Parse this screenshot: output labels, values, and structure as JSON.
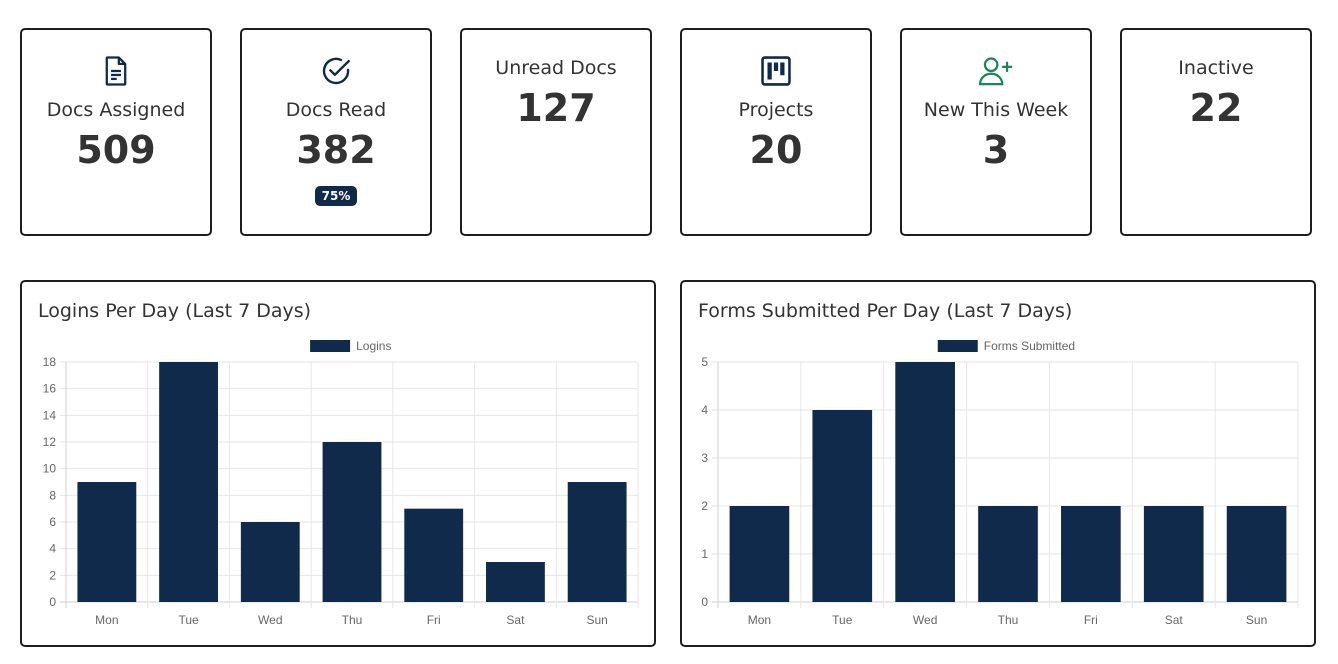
{
  "stats": [
    {
      "label": "Docs Assigned",
      "value": "509",
      "icon": "document-icon"
    },
    {
      "label": "Docs Read",
      "value": "382",
      "icon": "check-circle-icon",
      "badge": "75%"
    },
    {
      "label": "Unread Docs",
      "value": "127"
    },
    {
      "label": "Projects",
      "value": "20",
      "icon": "kanban-board-icon"
    },
    {
      "label": "New This Week",
      "value": "3",
      "icon": "user-plus-icon"
    },
    {
      "label": "Inactive",
      "value": "22"
    }
  ],
  "colors": {
    "bar": "#0f2a4a",
    "accent_green": "#198754",
    "icon_dark": "#0f2a4a"
  },
  "charts": [
    {
      "title": "Logins Per Day (Last 7 Days)",
      "chart_data": {
        "type": "bar",
        "categories": [
          "Mon",
          "Tue",
          "Wed",
          "Thu",
          "Fri",
          "Sat",
          "Sun"
        ],
        "series": [
          {
            "name": "Logins",
            "values": [
              9,
              18,
              6,
              12,
              7,
              3,
              9
            ]
          }
        ],
        "ylim": [
          0,
          18
        ],
        "yticks": [
          0,
          2,
          4,
          6,
          8,
          10,
          12,
          14,
          16,
          18
        ],
        "legend": "top",
        "grid": true
      }
    },
    {
      "title": "Forms Submitted Per Day (Last 7 Days)",
      "chart_data": {
        "type": "bar",
        "categories": [
          "Mon",
          "Tue",
          "Wed",
          "Thu",
          "Fri",
          "Sat",
          "Sun"
        ],
        "series": [
          {
            "name": "Forms Submitted",
            "values": [
              2,
              4,
              5,
              2,
              2,
              2,
              2
            ]
          }
        ],
        "ylim": [
          0,
          5
        ],
        "yticks": [
          0,
          1,
          2,
          3,
          4,
          5
        ],
        "legend": "top",
        "grid": true
      }
    }
  ]
}
